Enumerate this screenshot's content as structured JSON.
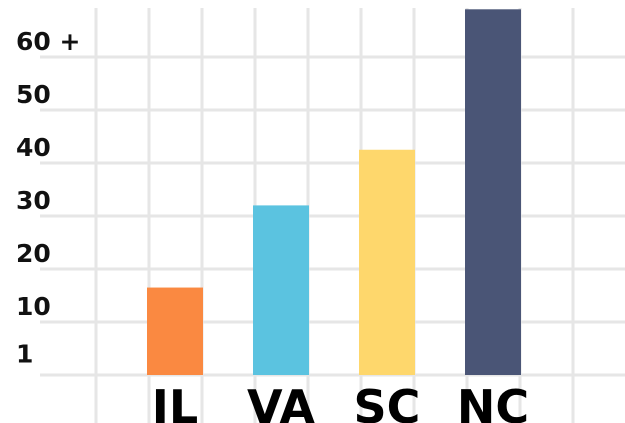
{
  "chart_data": {
    "type": "bar",
    "categories": [
      "IL",
      "VA",
      "SC",
      "NC"
    ],
    "values": [
      16.5,
      32,
      42.5,
      69
    ],
    "colors": [
      "#fa8941",
      "#5bc3e0",
      "#fed76c",
      "#4a5576"
    ],
    "yticks": [
      {
        "value": 1,
        "label": "1"
      },
      {
        "value": 10,
        "label": "10"
      },
      {
        "value": 20,
        "label": "20"
      },
      {
        "value": 30,
        "label": "30"
      },
      {
        "value": 40,
        "label": "40"
      },
      {
        "value": 50,
        "label": "50"
      },
      {
        "value": 60,
        "label": "60 +"
      }
    ],
    "ylim": [
      0,
      69
    ],
    "title": "",
    "xlabel": "",
    "ylabel": "",
    "grid": true,
    "legend": "none"
  }
}
